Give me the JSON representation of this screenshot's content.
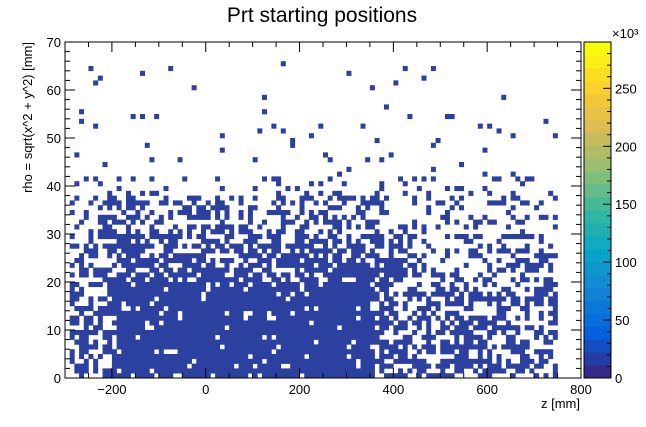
{
  "chart_data": {
    "type": "heatmap",
    "title": "Prt starting positions",
    "xlabel": "z [mm]",
    "ylabel": "rho = sqrt(x^2 + y^2) [mm]",
    "xlim": [
      -300,
      800
    ],
    "ylim": [
      0,
      70
    ],
    "x_ticks": [
      -200,
      0,
      200,
      400,
      600,
      800
    ],
    "y_ticks": [
      0,
      10,
      20,
      30,
      40,
      50,
      60,
      70
    ],
    "x_tick_labels": [
      "−200",
      "0",
      "200",
      "400",
      "600",
      "800"
    ],
    "y_tick_labels": [
      "0",
      "10",
      "20",
      "30",
      "40",
      "50",
      "60",
      "70"
    ],
    "colorbar": {
      "range": [
        0,
        290000
      ],
      "ticks": [
        0,
        50,
        100,
        150,
        200,
        250
      ],
      "tick_labels": [
        "0",
        "50",
        "100",
        "150",
        "200",
        "250"
      ],
      "exponent_label": "×10³",
      "palette": "kBird",
      "colors": [
        "#352a87",
        "#0363e1",
        "#1485d4",
        "#06a7c6",
        "#38b99e",
        "#92bf73",
        "#d9ba56",
        "#fcce2e",
        "#f9fb0e"
      ]
    },
    "bin_width": [
      10,
      1
    ],
    "fill_color": "#2c40a0",
    "occupancy": {
      "note_regions": [
        {
          "z_range": [
            -280,
            740
          ],
          "rho_range": [
            0,
            20
          ],
          "density": "high"
        },
        {
          "z_range": [
            -260,
            700
          ],
          "rho_range": [
            20,
            38
          ],
          "density": "medium"
        },
        {
          "z_range": [
            -280,
            720
          ],
          "rho_range": [
            38,
            66
          ],
          "density": "sparse"
        }
      ]
    }
  }
}
